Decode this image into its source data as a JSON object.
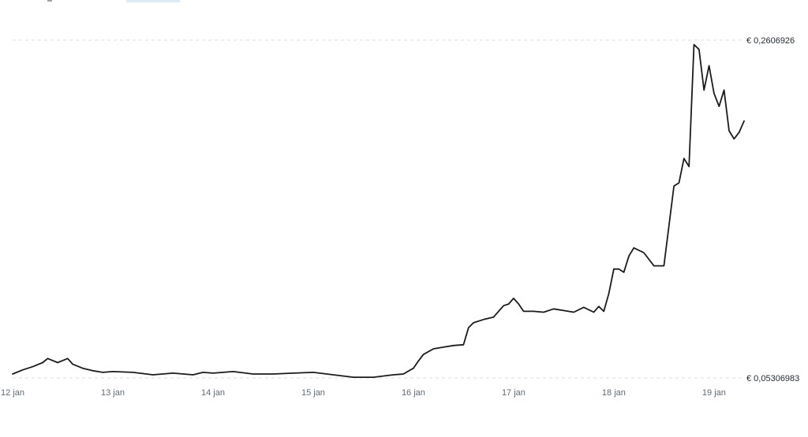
{
  "chart_data": {
    "type": "line",
    "x_ticks": [
      "12 jan",
      "13 jan",
      "14 jan",
      "15 jan",
      "16 jan",
      "17 jan",
      "18 jan",
      "19 jan"
    ],
    "y_labels": [
      "€ 0,2606926",
      "€ 0,05306983"
    ],
    "ylim": [
      0.05306983,
      0.2606926
    ],
    "grid": "horizontal dashed at min and max",
    "line_color": "#1b1b1b",
    "series": [
      {
        "x": [
          12.0,
          12.1,
          12.2,
          12.3,
          12.35,
          12.45,
          12.55,
          12.6,
          12.7,
          12.8,
          12.9,
          13.0,
          13.2,
          13.4,
          13.6,
          13.8,
          13.9,
          14.0,
          14.2,
          14.4,
          14.6,
          14.8,
          15.0,
          15.2,
          15.4,
          15.6,
          15.8,
          15.9,
          16.0,
          16.05,
          16.1,
          16.2,
          16.3,
          16.4,
          16.5,
          16.55,
          16.6,
          16.7,
          16.8,
          16.9,
          16.95,
          17.0,
          17.05,
          17.1,
          17.2,
          17.3,
          17.4,
          17.5,
          17.6,
          17.7,
          17.8,
          17.85,
          17.9,
          17.95,
          18.0,
          18.05,
          18.1,
          18.15,
          18.2,
          18.3,
          18.4,
          18.5,
          18.6,
          18.65,
          18.7,
          18.75,
          18.8,
          18.85,
          18.9,
          18.95,
          19.0,
          19.05,
          19.1,
          19.15,
          19.2,
          19.25,
          19.3
        ],
        "values": [
          0.0555,
          0.058,
          0.06,
          0.0625,
          0.065,
          0.0625,
          0.065,
          0.0615,
          0.059,
          0.0575,
          0.0565,
          0.057,
          0.0565,
          0.055,
          0.056,
          0.055,
          0.0565,
          0.056,
          0.057,
          0.0555,
          0.0555,
          0.056,
          0.0565,
          0.055,
          0.0535,
          0.0535,
          0.055,
          0.0555,
          0.059,
          0.0635,
          0.0675,
          0.071,
          0.072,
          0.073,
          0.0735,
          0.084,
          0.087,
          0.089,
          0.0905,
          0.0975,
          0.0985,
          0.102,
          0.0985,
          0.094,
          0.094,
          0.0935,
          0.0955,
          0.0945,
          0.0935,
          0.0965,
          0.0935,
          0.097,
          0.094,
          0.105,
          0.12,
          0.12,
          0.118,
          0.128,
          0.133,
          0.13,
          0.122,
          0.122,
          0.171,
          0.173,
          0.188,
          0.183,
          0.258,
          0.255,
          0.23,
          0.245,
          0.228,
          0.22,
          0.23,
          0.205,
          0.2,
          0.204,
          0.211
        ]
      }
    ]
  }
}
